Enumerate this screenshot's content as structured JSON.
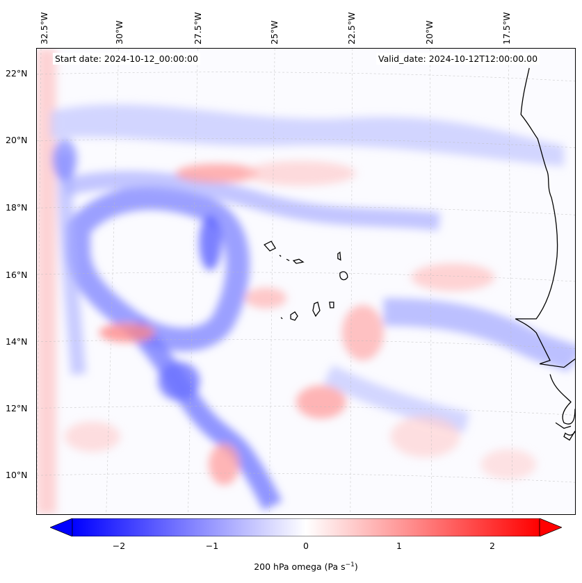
{
  "map": {
    "lon_labels": [
      "32.5°W",
      "30°W",
      "27.5°W",
      "25°W",
      "22.5°W",
      "20°W",
      "17.5°W"
    ],
    "lat_labels": [
      "22°N",
      "20°N",
      "18°N",
      "16°N",
      "14°N",
      "12°N",
      "10°N"
    ],
    "start_date": "Start date: 2024-10-12_00:00:00",
    "valid_date": "Valid_date: 2024-10-12T12:00:00.00",
    "colors": {
      "negative": "#0000ff",
      "zero": "#ffffff",
      "positive": "#ff0000",
      "coast": "#000000"
    }
  },
  "colorbar": {
    "ticks": [
      "−2",
      "−1",
      "0",
      "1",
      "2"
    ],
    "label_prefix": "200 hPa omega (Pa s",
    "label_sup": "−1",
    "label_suffix": ")",
    "range": [
      -2.6,
      2.6
    ]
  }
}
